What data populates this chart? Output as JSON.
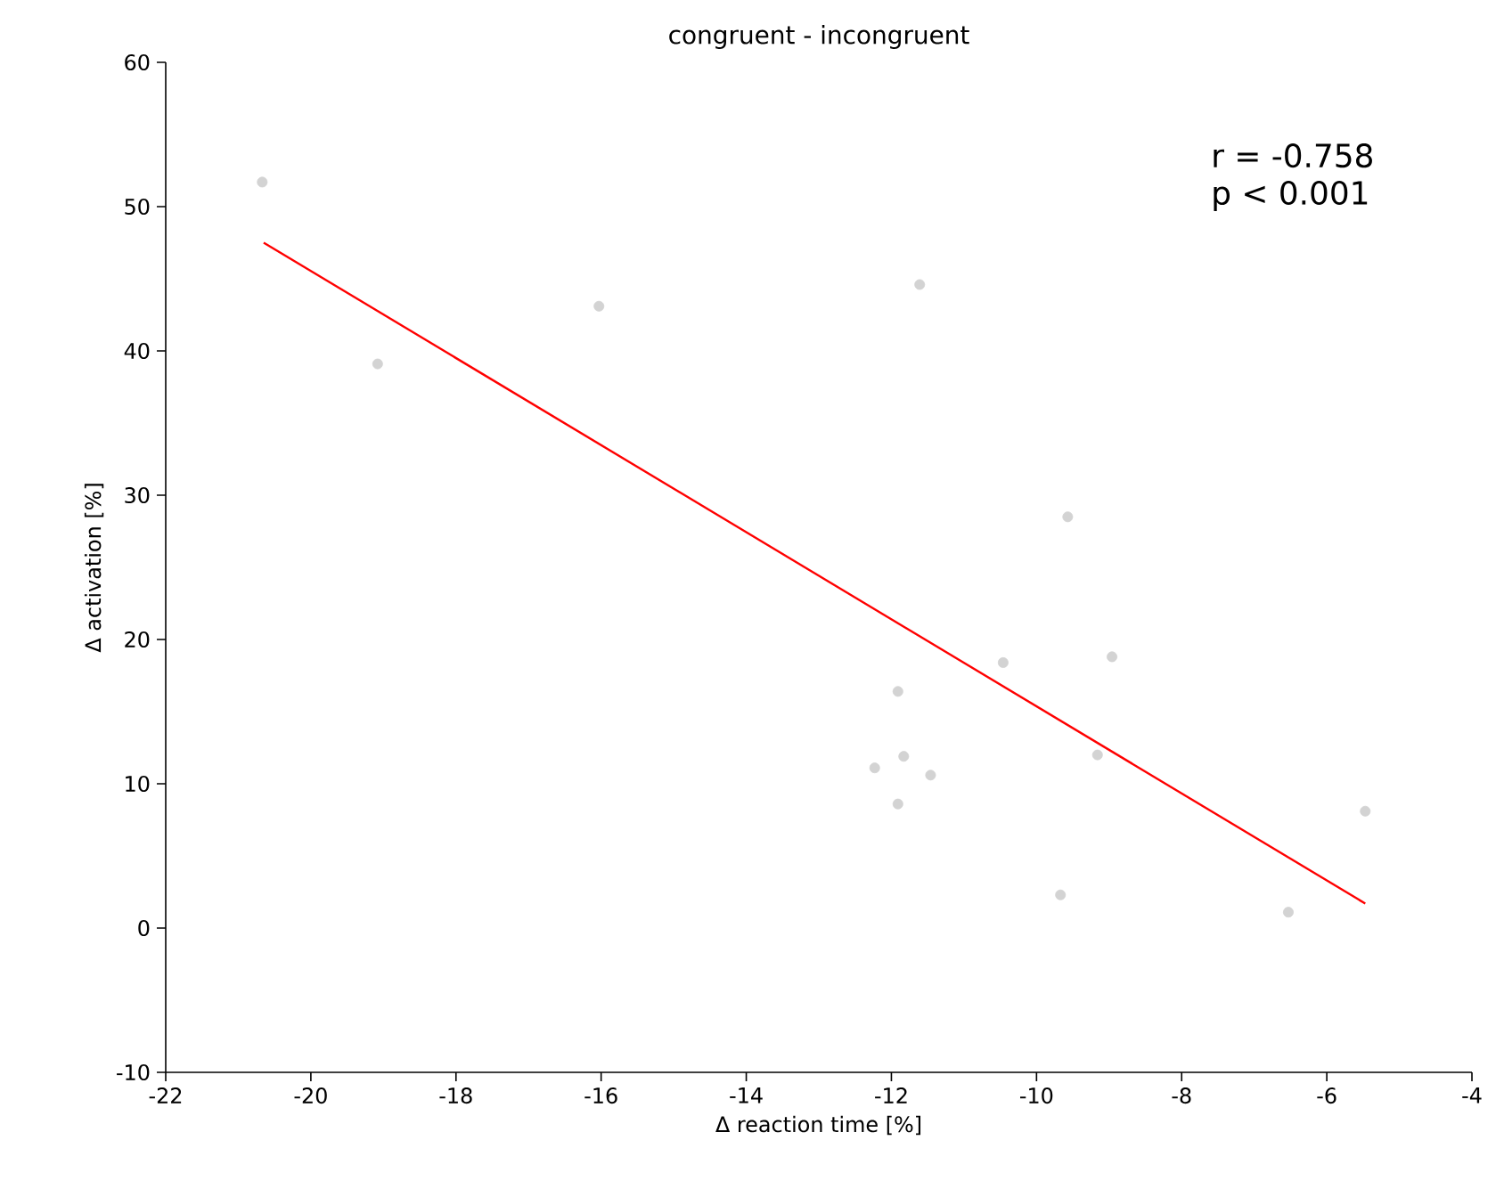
{
  "chart_data": {
    "type": "scatter",
    "title": "congruent - incongruent",
    "xlabel": "Δ reaction time [%]",
    "ylabel": "Δ activation [%]",
    "xlim": [
      -22,
      -4
    ],
    "ylim": [
      -10,
      60
    ],
    "xticks": [
      -22,
      -20,
      -18,
      -16,
      -14,
      -12,
      -10,
      -8,
      -6,
      -4
    ],
    "yticks": [
      -10,
      0,
      10,
      20,
      30,
      40,
      50,
      60
    ],
    "annotations": [
      "r = -0.758",
      "p < 0.001"
    ],
    "series": [
      {
        "color": "#d3d3d3",
        "marker": "circle",
        "x": [
          -20.67,
          -19.08,
          -16.03,
          -11.61,
          -9.57,
          -10.46,
          -8.96,
          -11.91,
          -12.23,
          -11.83,
          -11.46,
          -11.91,
          -9.16,
          -9.67,
          -6.53,
          -5.47
        ],
        "values": [
          51.7,
          39.1,
          43.1,
          44.6,
          28.5,
          18.4,
          18.8,
          16.4,
          11.1,
          11.9,
          10.6,
          8.6,
          12.0,
          2.3,
          1.1,
          8.1
        ]
      },
      {
        "type": "line",
        "marker": "none",
        "color": "#ff0000",
        "x": [
          -20.65,
          -5.47
        ],
        "values": [
          47.5,
          1.7
        ]
      }
    ]
  }
}
